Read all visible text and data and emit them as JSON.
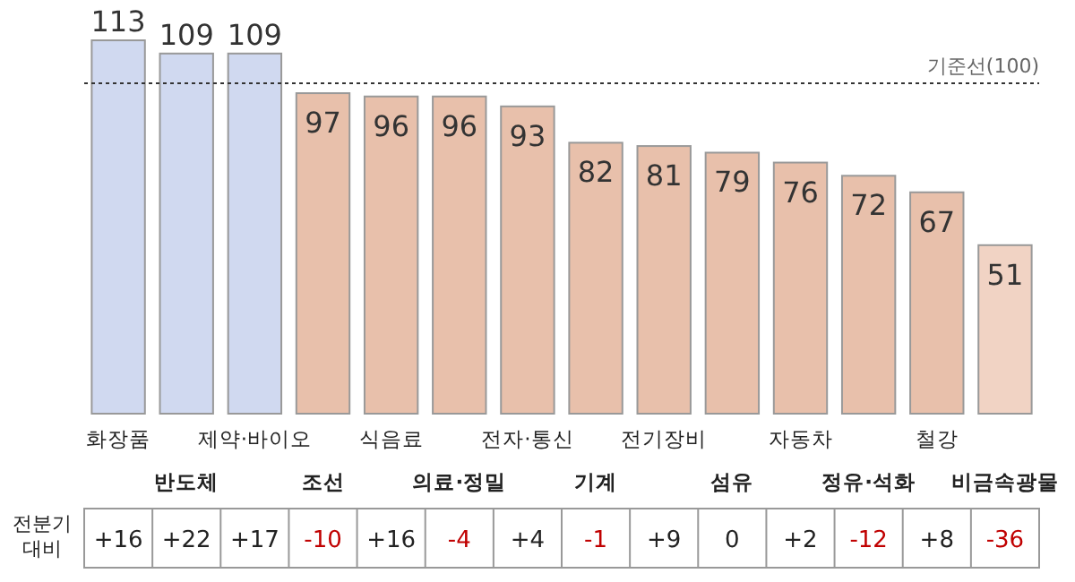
{
  "chart_data": [
    {
      "type": "bar",
      "categories": [
        "화장품",
        "반도체",
        "제약·바이오",
        "조선",
        "식음료",
        "의료·정밀",
        "전자·통신",
        "기계",
        "전기장비",
        "섬유",
        "자동차",
        "정유·석화",
        "철강",
        "비금속광물"
      ],
      "values": [
        113,
        109,
        109,
        97,
        96,
        96,
        93,
        82,
        81,
        79,
        76,
        72,
        67,
        51
      ],
      "colors": [
        "#d0d9f0",
        "#d0d9f0",
        "#d0d9f0",
        "#e8c0ab",
        "#e8c0ab",
        "#e8c0ab",
        "#e8c0ab",
        "#e8c0ab",
        "#e8c0ab",
        "#e8c0ab",
        "#e8c0ab",
        "#e8c0ab",
        "#e8c0ab",
        "#f1d3c4"
      ],
      "data_labels": true,
      "ref_lines": [
        {
          "axis": "y",
          "value": 100,
          "label": "기준선(100)",
          "color": "#333333",
          "line_style": "dotted"
        }
      ]
    },
    {
      "type": "other",
      "title": "전분기 대비",
      "values": [
        16,
        22,
        17,
        -10,
        16,
        -4,
        4,
        -1,
        9,
        0,
        2,
        -12,
        8,
        -36
      ],
      "value_labels": [
        "+16",
        "+22",
        "+17",
        "-10",
        "+16",
        "-4",
        "+4",
        "-1",
        "+9",
        "0",
        "+2",
        "-12",
        "+8",
        "-36"
      ],
      "colors": [
        "#222222",
        "#222222",
        "#222222",
        "#c00000",
        "#222222",
        "#c00000",
        "#222222",
        "#c00000",
        "#222222",
        "#222222",
        "#222222",
        "#c00000",
        "#222222",
        "#c00000"
      ]
    }
  ]
}
